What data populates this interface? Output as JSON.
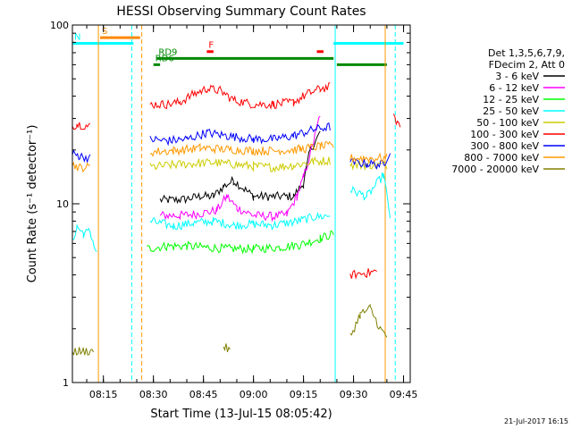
{
  "chart_data": {
    "type": "line",
    "title": "HESSI Observing Summary Count Rates",
    "xlabel": "Start Time (13-Jul-15 08:05:42)",
    "ylabel": "Count Rate (s⁻¹ detector⁻¹)",
    "y_scale": "log",
    "ylim": [
      1,
      100
    ],
    "y_ticks": [
      {
        "value": 1,
        "label": "1"
      },
      {
        "value": 10,
        "label": "10"
      },
      {
        "value": 100,
        "label": "100"
      }
    ],
    "xlim": [
      "08:05:42",
      "09:47:00"
    ],
    "x_ticks": [
      "08:15",
      "08:30",
      "08:45",
      "09:00",
      "09:15",
      "09:30",
      "09:45"
    ],
    "grid": false,
    "legend_position": "right",
    "legend_header": [
      "Det 1,3,5,6,7,9,",
      "FDecim 2, Att 0"
    ],
    "series": [
      {
        "name": "3 - 6 keV",
        "color": "#000000",
        "points": [
          [
            "08:26",
            0
          ],
          [
            "08:32",
            10.5
          ],
          [
            "08:38",
            10.5
          ],
          [
            "08:44",
            11
          ],
          [
            "08:48",
            11
          ],
          [
            "08:51",
            12.5
          ],
          [
            "08:54",
            13.5
          ],
          [
            "09:00",
            11
          ],
          [
            "09:06",
            11
          ],
          [
            "09:12",
            11
          ],
          [
            "09:15",
            13
          ],
          [
            "09:17",
            20
          ],
          [
            "09:20",
            25
          ],
          [
            "09:21",
            0
          ]
        ]
      },
      {
        "name": "6 - 12 keV",
        "color": "#ff00ff",
        "points": [
          [
            "08:26",
            0
          ],
          [
            "08:32",
            8.6
          ],
          [
            "08:38",
            8.6
          ],
          [
            "08:44",
            8.8
          ],
          [
            "08:49",
            9.2
          ],
          [
            "08:52",
            11
          ],
          [
            "08:55",
            9.5
          ],
          [
            "09:00",
            8.6
          ],
          [
            "09:06",
            8.5
          ],
          [
            "09:10",
            8.7
          ],
          [
            "09:13",
            11
          ],
          [
            "09:15",
            14
          ],
          [
            "09:18",
            22
          ],
          [
            "09:20",
            32
          ],
          [
            "09:21",
            0
          ]
        ]
      },
      {
        "name": "12 - 25 keV",
        "color": "#00ff00",
        "points": [
          [
            "08:05:42",
            0
          ],
          [
            "08:25",
            0
          ],
          [
            "08:28",
            5.6
          ],
          [
            "08:34",
            5.8
          ],
          [
            "08:40",
            5.8
          ],
          [
            "08:46",
            5.7
          ],
          [
            "08:52",
            5.6
          ],
          [
            "09:00",
            5.6
          ],
          [
            "09:08",
            5.7
          ],
          [
            "09:14",
            5.9
          ],
          [
            "09:20",
            6.4
          ],
          [
            "09:24",
            6.8
          ],
          [
            "09:25",
            0
          ]
        ]
      },
      {
        "name": "25 - 50 keV",
        "color": "#00ffff",
        "points": [
          [
            "08:05:42",
            6.0
          ],
          [
            "08:07",
            7.5
          ],
          [
            "08:09",
            6.8
          ],
          [
            "08:11",
            7.0
          ],
          [
            "08:13",
            5.2
          ],
          [
            "08:14",
            0
          ],
          [
            "08:27",
            0
          ],
          [
            "08:29",
            8.0
          ],
          [
            "08:36",
            7.5
          ],
          [
            "08:42",
            7.8
          ],
          [
            "08:48",
            8.0
          ],
          [
            "08:54",
            7.6
          ],
          [
            "09:00",
            7.7
          ],
          [
            "09:06",
            7.6
          ],
          [
            "09:12",
            7.9
          ],
          [
            "09:18",
            8.4
          ],
          [
            "09:23",
            8.6
          ],
          [
            "09:25",
            0
          ],
          [
            "09:28",
            0
          ],
          [
            "09:29",
            12
          ],
          [
            "09:34",
            11
          ],
          [
            "09:39",
            14.5
          ],
          [
            "09:41",
            8.5
          ],
          [
            "09:42",
            0
          ]
        ]
      },
      {
        "name": "50 - 100 keV",
        "color": "#cccc00",
        "points": [
          [
            "08:27",
            0
          ],
          [
            "08:29",
            16
          ],
          [
            "08:36",
            16.5
          ],
          [
            "08:42",
            16.8
          ],
          [
            "08:48",
            17
          ],
          [
            "08:54",
            16.6
          ],
          [
            "09:00",
            16.2
          ],
          [
            "09:06",
            16.0
          ],
          [
            "09:12",
            16.4
          ],
          [
            "09:18",
            17.2
          ],
          [
            "09:23",
            17.5
          ],
          [
            "09:25",
            0
          ],
          [
            "09:28",
            0
          ],
          [
            "09:29",
            16.5
          ],
          [
            "09:35",
            16.5
          ],
          [
            "09:40",
            16.5
          ],
          [
            "09:41",
            0
          ]
        ]
      },
      {
        "name": "100 - 300 keV",
        "color": "#ff0000",
        "points": [
          [
            "08:05:42",
            27
          ],
          [
            "08:07",
            28
          ],
          [
            "08:11",
            27
          ],
          [
            "08:12",
            0
          ],
          [
            "08:27",
            0
          ],
          [
            "08:29",
            36
          ],
          [
            "08:34",
            36
          ],
          [
            "08:38",
            37
          ],
          [
            "08:42",
            41
          ],
          [
            "08:46",
            44
          ],
          [
            "08:50",
            43
          ],
          [
            "08:54",
            38
          ],
          [
            "09:00",
            36
          ],
          [
            "09:06",
            36
          ],
          [
            "09:12",
            37
          ],
          [
            "09:16",
            41
          ],
          [
            "09:20",
            44
          ],
          [
            "09:23",
            45
          ],
          [
            "09:25",
            0
          ],
          [
            "09:28",
            0
          ],
          [
            "09:29",
            4.0
          ],
          [
            "09:34",
            4.1
          ],
          [
            "09:37",
            4.2
          ],
          [
            "09:38",
            0
          ],
          [
            "09:41",
            0
          ],
          [
            "09:42",
            31
          ],
          [
            "09:44",
            27
          ]
        ]
      },
      {
        "name": "300 - 800 keV",
        "color": "#0000ff",
        "points": [
          [
            "08:05:42",
            19
          ],
          [
            "08:08",
            18.5
          ],
          [
            "08:11",
            18
          ],
          [
            "08:12",
            0
          ],
          [
            "08:27",
            0
          ],
          [
            "08:29",
            23
          ],
          [
            "08:34",
            22.5
          ],
          [
            "08:40",
            23
          ],
          [
            "08:46",
            25
          ],
          [
            "08:52",
            24
          ],
          [
            "09:00",
            23
          ],
          [
            "09:06",
            23
          ],
          [
            "09:12",
            24
          ],
          [
            "09:18",
            26
          ],
          [
            "09:23",
            27
          ],
          [
            "09:25",
            0
          ],
          [
            "09:28",
            0
          ],
          [
            "09:29",
            17
          ],
          [
            "09:34",
            16.8
          ],
          [
            "09:39",
            16.5
          ],
          [
            "09:41",
            20
          ],
          [
            "09:42",
            0
          ]
        ]
      },
      {
        "name": "800 - 7000 keV",
        "color": "#ff9900",
        "points": [
          [
            "08:05:42",
            16.5
          ],
          [
            "08:08",
            16
          ],
          [
            "08:11",
            16
          ],
          [
            "08:12",
            0
          ],
          [
            "08:27",
            0
          ],
          [
            "08:29",
            19.5
          ],
          [
            "08:36",
            19.8
          ],
          [
            "08:44",
            20.5
          ],
          [
            "08:52",
            20.2
          ],
          [
            "09:00",
            19.8
          ],
          [
            "09:08",
            19.8
          ],
          [
            "09:14",
            20.2
          ],
          [
            "09:20",
            21
          ],
          [
            "09:24",
            21
          ],
          [
            "09:25",
            0
          ],
          [
            "09:28",
            0
          ],
          [
            "09:29",
            18
          ],
          [
            "09:35",
            18
          ],
          [
            "09:40",
            18
          ],
          [
            "09:41",
            0
          ]
        ]
      },
      {
        "name": "7000 - 20000 keV",
        "color": "#808000",
        "points": [
          [
            "08:05:42",
            1.5
          ],
          [
            "08:09",
            1.5
          ],
          [
            "08:12",
            1.5
          ],
          [
            "08:13",
            0
          ],
          [
            "08:50",
            0
          ],
          [
            "08:51",
            1.6
          ],
          [
            "08:53",
            1.5
          ],
          [
            "08:54",
            0
          ],
          [
            "09:28",
            0
          ],
          [
            "09:29",
            1.8
          ],
          [
            "09:32",
            2.4
          ],
          [
            "09:35",
            2.6
          ],
          [
            "09:38",
            2.0
          ],
          [
            "09:40",
            1.8
          ],
          [
            "09:41",
            0
          ]
        ]
      }
    ],
    "annotations": [
      {
        "label": "S",
        "color": "#ff8800",
        "x_start": "08:14",
        "x_end": "08:26",
        "y": 85
      },
      {
        "label": "N",
        "color": "#00ffff",
        "x_start": "08:05:42",
        "x_end": "08:24",
        "y": 79
      },
      {
        "label": "F",
        "color": "#ff0000",
        "x_start": "08:46",
        "x_end": "08:48",
        "y": 71
      },
      {
        "label": "",
        "color": "#ff0000",
        "x_start": "09:19",
        "x_end": "09:21",
        "y": 71
      },
      {
        "label": "RD9",
        "color": "#008800",
        "x_start": "08:31",
        "x_end": "09:24",
        "y": 65
      },
      {
        "label": "RD6",
        "color": "#008800",
        "x_start": "08:30",
        "x_end": "08:32",
        "y": 60
      },
      {
        "label": "",
        "color": "#008800",
        "x_start": "09:25",
        "x_end": "09:40",
        "y": 60
      },
      {
        "label": "",
        "color": "#00ffff",
        "x_start": "09:24",
        "x_end": "09:45",
        "y": 79
      }
    ],
    "vertical_markers": [
      {
        "x": "08:05:42",
        "color": "#00ffff",
        "style": "solid"
      },
      {
        "x": "08:13:30",
        "color": "#ff9900",
        "style": "solid"
      },
      {
        "x": "08:23:30",
        "color": "#00ffff",
        "style": "dashed"
      },
      {
        "x": "08:26:30",
        "color": "#ff9900",
        "style": "dashed"
      },
      {
        "x": "09:24:30",
        "color": "#00ffff",
        "style": "solid"
      },
      {
        "x": "09:39:30",
        "color": "#ff9900",
        "style": "solid"
      },
      {
        "x": "09:42:30",
        "color": "#00ffff",
        "style": "dashed"
      }
    ],
    "footer_stamp": "21-Jul-2017 16:15"
  }
}
